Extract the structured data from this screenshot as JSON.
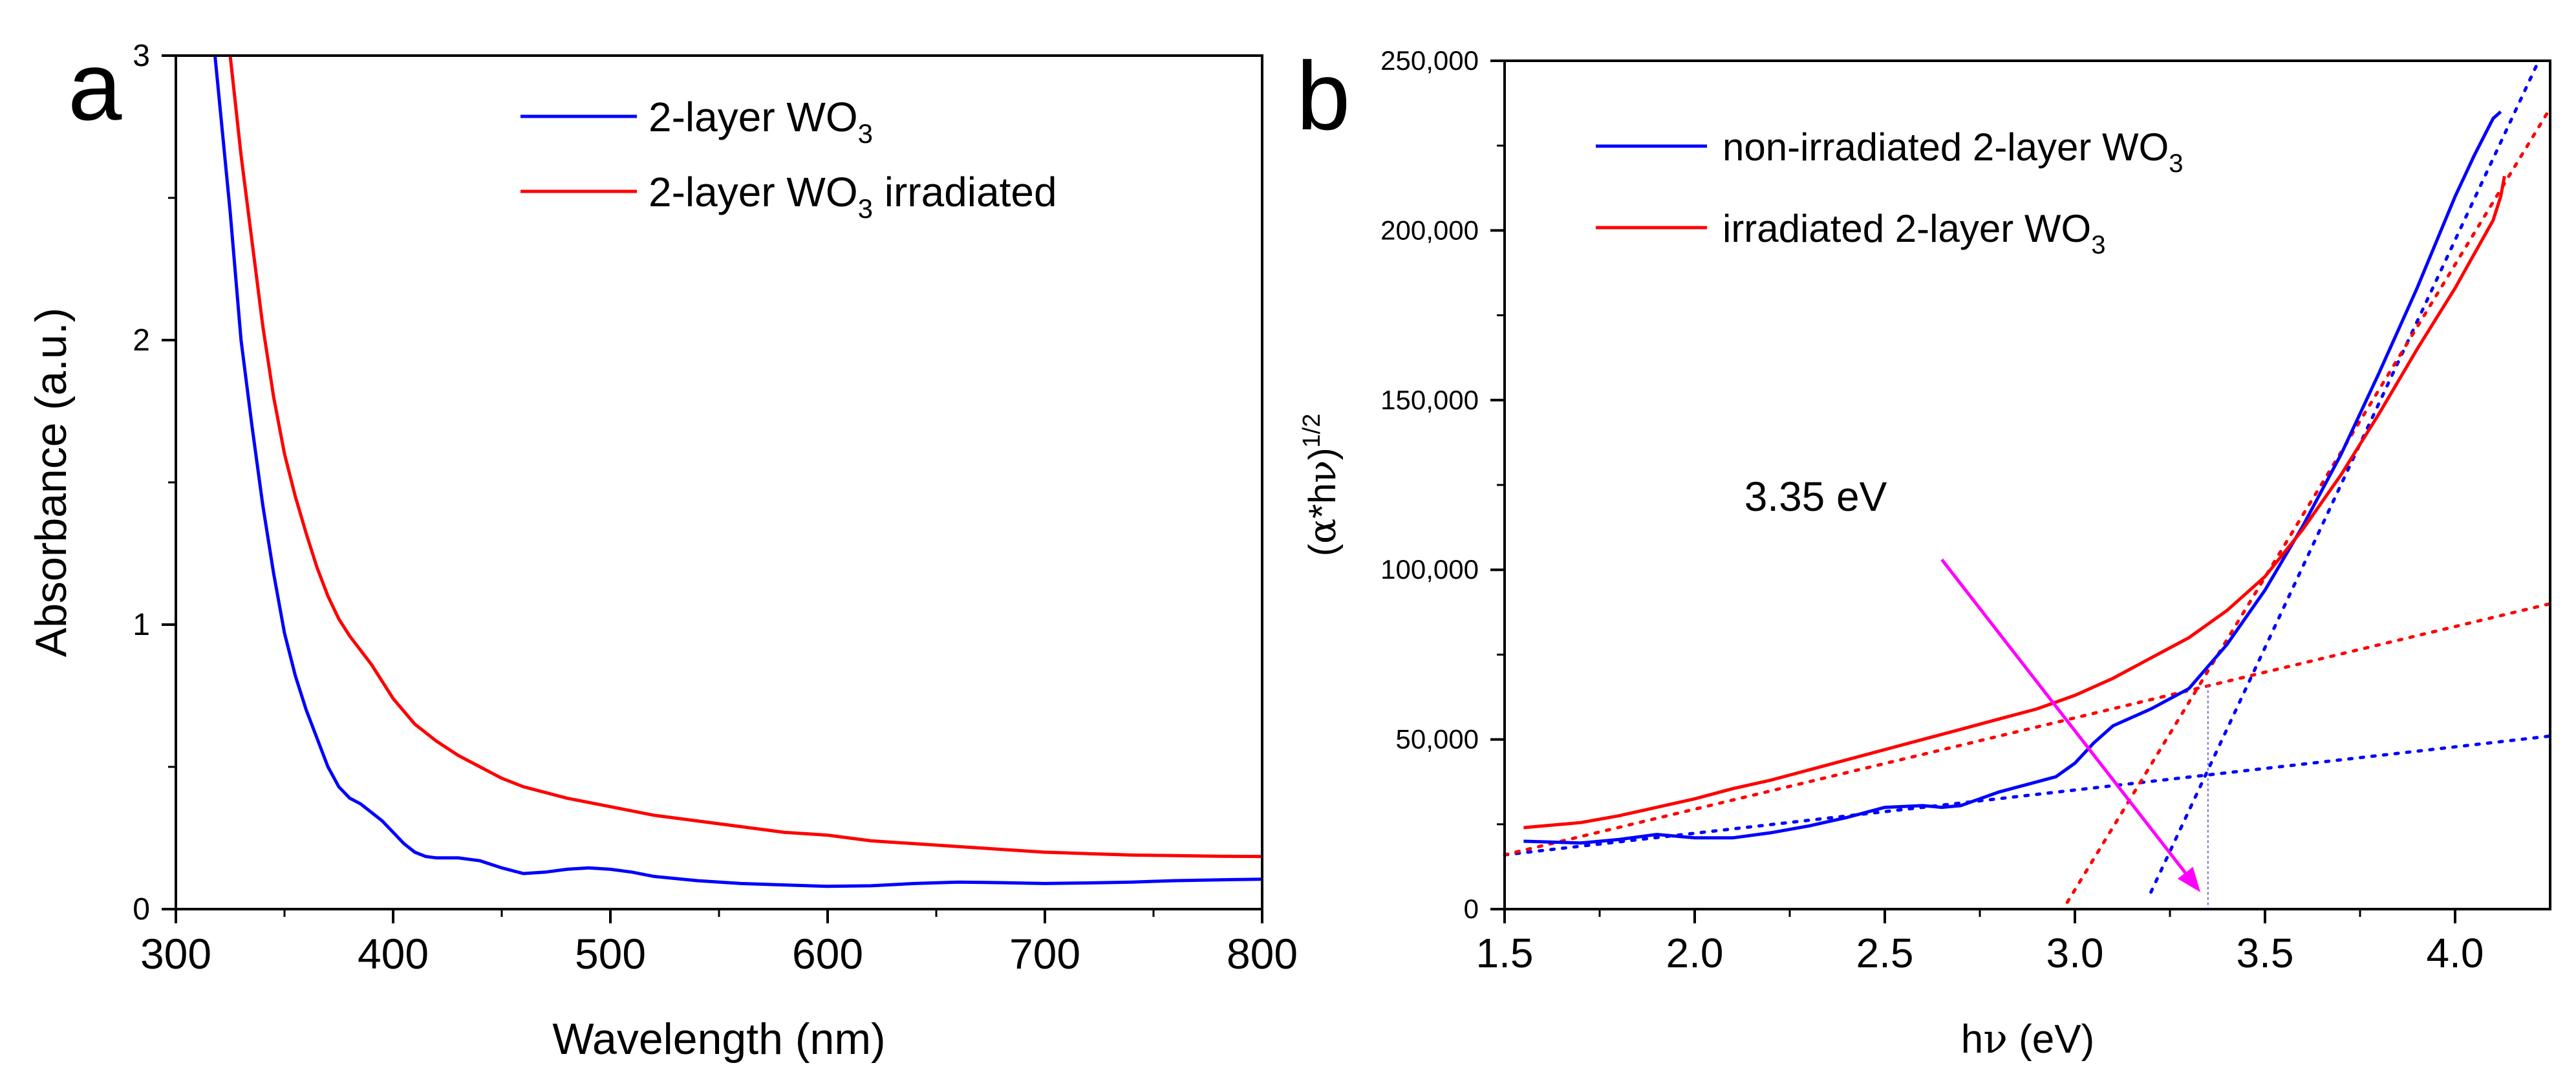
{
  "chart_data": [
    {
      "panel_label": "a",
      "type": "line",
      "xlabel": "Wavelength (nm)",
      "ylabel": "Absorbance (a.u.)",
      "xlim": [
        300,
        800
      ],
      "ylim": [
        0,
        3
      ],
      "xticks": [
        "300",
        "400",
        "500",
        "600",
        "700",
        "800"
      ],
      "yticks": [
        "0",
        "1",
        "2",
        "3"
      ],
      "legend_position": "top-right",
      "series": [
        {
          "name": "2-layer WO3",
          "legend_text": "2-layer WO",
          "legend_sub": "3",
          "legend_suffix": "",
          "color": "#0000ff",
          "points": [
            [
              318,
              3.0
            ],
            [
              325,
              2.45
            ],
            [
              330,
              2.0
            ],
            [
              335,
              1.7
            ],
            [
              340,
              1.42
            ],
            [
              345,
              1.18
            ],
            [
              350,
              0.97
            ],
            [
              355,
              0.82
            ],
            [
              360,
              0.7
            ],
            [
              365,
              0.6
            ],
            [
              370,
              0.5
            ],
            [
              375,
              0.43
            ],
            [
              380,
              0.39
            ],
            [
              385,
              0.37
            ],
            [
              390,
              0.34
            ],
            [
              395,
              0.31
            ],
            [
              400,
              0.27
            ],
            [
              405,
              0.23
            ],
            [
              410,
              0.2
            ],
            [
              415,
              0.185
            ],
            [
              420,
              0.18
            ],
            [
              430,
              0.18
            ],
            [
              440,
              0.17
            ],
            [
              450,
              0.145
            ],
            [
              460,
              0.125
            ],
            [
              470,
              0.13
            ],
            [
              480,
              0.14
            ],
            [
              490,
              0.145
            ],
            [
              500,
              0.14
            ],
            [
              510,
              0.13
            ],
            [
              520,
              0.115
            ],
            [
              540,
              0.1
            ],
            [
              560,
              0.09
            ],
            [
              580,
              0.085
            ],
            [
              600,
              0.08
            ],
            [
              620,
              0.082
            ],
            [
              640,
              0.09
            ],
            [
              660,
              0.095
            ],
            [
              680,
              0.093
            ],
            [
              700,
              0.09
            ],
            [
              720,
              0.092
            ],
            [
              740,
              0.095
            ],
            [
              760,
              0.1
            ],
            [
              780,
              0.103
            ],
            [
              800,
              0.105
            ]
          ]
        },
        {
          "name": "2-layer WO3 irradiated",
          "legend_text": "2-layer WO",
          "legend_sub": "3",
          "legend_suffix": " irradiated",
          "color": "#ff0000",
          "points": [
            [
              325,
              3.0
            ],
            [
              330,
              2.65
            ],
            [
              335,
              2.35
            ],
            [
              340,
              2.05
            ],
            [
              345,
              1.8
            ],
            [
              350,
              1.6
            ],
            [
              355,
              1.45
            ],
            [
              360,
              1.32
            ],
            [
              365,
              1.2
            ],
            [
              370,
              1.1
            ],
            [
              375,
              1.02
            ],
            [
              380,
              0.96
            ],
            [
              390,
              0.86
            ],
            [
              400,
              0.74
            ],
            [
              410,
              0.65
            ],
            [
              420,
              0.59
            ],
            [
              430,
              0.54
            ],
            [
              440,
              0.5
            ],
            [
              450,
              0.46
            ],
            [
              460,
              0.43
            ],
            [
              470,
              0.41
            ],
            [
              480,
              0.39
            ],
            [
              500,
              0.36
            ],
            [
              520,
              0.33
            ],
            [
              540,
              0.31
            ],
            [
              560,
              0.29
            ],
            [
              580,
              0.27
            ],
            [
              600,
              0.26
            ],
            [
              620,
              0.24
            ],
            [
              640,
              0.23
            ],
            [
              660,
              0.22
            ],
            [
              680,
              0.21
            ],
            [
              700,
              0.2
            ],
            [
              720,
              0.195
            ],
            [
              740,
              0.19
            ],
            [
              760,
              0.188
            ],
            [
              780,
              0.186
            ],
            [
              800,
              0.185
            ]
          ]
        }
      ]
    },
    {
      "panel_label": "b",
      "type": "line",
      "xlabel_pre": "h",
      "xlabel_sym": "ν",
      "xlabel_post": " (eV)",
      "ylabel_open": "(",
      "ylabel_alpha": "α",
      "ylabel_mid": "*h",
      "ylabel_nu": "ν",
      "ylabel_close": ")",
      "ylabel_sup": "1/2",
      "xlim": [
        1.5,
        4.25
      ],
      "ylim": [
        0,
        250000
      ],
      "xticks": [
        "1.5",
        "2.0",
        "2.5",
        "3.0",
        "3.5",
        "4.0"
      ],
      "yticks": [
        "0",
        "50,000",
        "100,000",
        "150,000",
        "200,000",
        "250,000"
      ],
      "legend_position": "top-left",
      "annotation": {
        "text": "3.35 eV",
        "arrow_from": [
          2.65,
          103000
        ],
        "arrow_to": [
          3.33,
          5000
        ],
        "color": "#ff00ff",
        "marker_x": 3.35,
        "marker_y_top": 66000
      },
      "series": [
        {
          "name": "non-irradiated 2-layer WO3",
          "legend_text": "non-irradiated 2-layer WO",
          "legend_sub": "3",
          "color": "#0000ff",
          "points": [
            [
              1.55,
              20000
            ],
            [
              1.7,
              19500
            ],
            [
              1.8,
              20500
            ],
            [
              1.9,
              22000
            ],
            [
              2.0,
              21000
            ],
            [
              2.1,
              21000
            ],
            [
              2.2,
              22500
            ],
            [
              2.3,
              24500
            ],
            [
              2.4,
              27000
            ],
            [
              2.5,
              30000
            ],
            [
              2.6,
              30500
            ],
            [
              2.65,
              30000
            ],
            [
              2.7,
              30500
            ],
            [
              2.8,
              34500
            ],
            [
              2.9,
              37500
            ],
            [
              2.95,
              39000
            ],
            [
              3.0,
              43000
            ],
            [
              3.05,
              49000
            ],
            [
              3.1,
              54000
            ],
            [
              3.2,
              59000
            ],
            [
              3.3,
              65000
            ],
            [
              3.4,
              78000
            ],
            [
              3.5,
              94000
            ],
            [
              3.6,
              113000
            ],
            [
              3.7,
              134000
            ],
            [
              3.8,
              158000
            ],
            [
              3.9,
              183000
            ],
            [
              4.0,
              210000
            ],
            [
              4.05,
              222000
            ],
            [
              4.1,
              233000
            ],
            [
              4.12,
              235000
            ]
          ]
        },
        {
          "name": "irradiated 2-layer WO3",
          "legend_text": "irradiated 2-layer WO",
          "legend_sub": "3",
          "color": "#ff0000",
          "points": [
            [
              1.55,
              24000
            ],
            [
              1.7,
              25500
            ],
            [
              1.8,
              27500
            ],
            [
              1.9,
              30000
            ],
            [
              2.0,
              32500
            ],
            [
              2.1,
              35500
            ],
            [
              2.2,
              38000
            ],
            [
              2.3,
              41000
            ],
            [
              2.4,
              44000
            ],
            [
              2.5,
              47000
            ],
            [
              2.6,
              50000
            ],
            [
              2.7,
              53000
            ],
            [
              2.8,
              56000
            ],
            [
              2.9,
              59000
            ],
            [
              3.0,
              63000
            ],
            [
              3.1,
              68000
            ],
            [
              3.2,
              74000
            ],
            [
              3.3,
              80000
            ],
            [
              3.4,
              88000
            ],
            [
              3.5,
              98000
            ],
            [
              3.6,
              112000
            ],
            [
              3.7,
              128000
            ],
            [
              3.8,
              146000
            ],
            [
              3.9,
              165000
            ],
            [
              4.0,
              183000
            ],
            [
              4.05,
              193000
            ],
            [
              4.1,
              203000
            ],
            [
              4.12,
              210000
            ],
            [
              4.13,
              216000
            ]
          ]
        }
      ],
      "fit_lines": [
        {
          "name": "blue baseline fit",
          "color": "#0000ff",
          "from": [
            1.5,
            16000
          ],
          "to": [
            4.25,
            51000
          ]
        },
        {
          "name": "blue edge fit",
          "color": "#0000ff",
          "from": [
            3.2,
            5000
          ],
          "to": [
            4.22,
            250000
          ]
        },
        {
          "name": "red baseline fit",
          "color": "#ff0000",
          "from": [
            1.5,
            16000
          ],
          "to": [
            4.25,
            90000
          ]
        },
        {
          "name": "red edge fit",
          "color": "#ff0000",
          "from": [
            2.98,
            2000
          ],
          "to": [
            4.25,
            236000
          ]
        }
      ]
    }
  ]
}
